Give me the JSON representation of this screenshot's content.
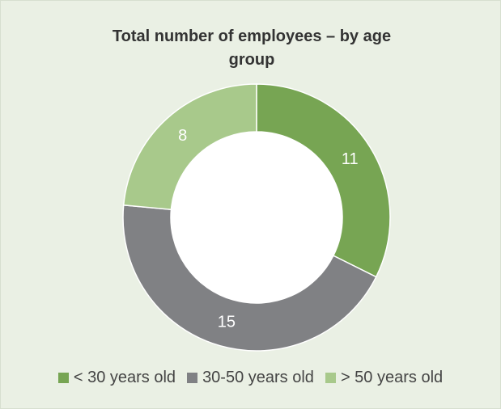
{
  "chart_data": {
    "type": "donut",
    "title": "Total number of employees – by age group",
    "categories": [
      "< 30 years old",
      "30-50 years old",
      "> 50 years old"
    ],
    "values": [
      11,
      15,
      8
    ],
    "colors": [
      "#77a553",
      "#808184",
      "#a8c98b"
    ],
    "legend": "bottom"
  }
}
